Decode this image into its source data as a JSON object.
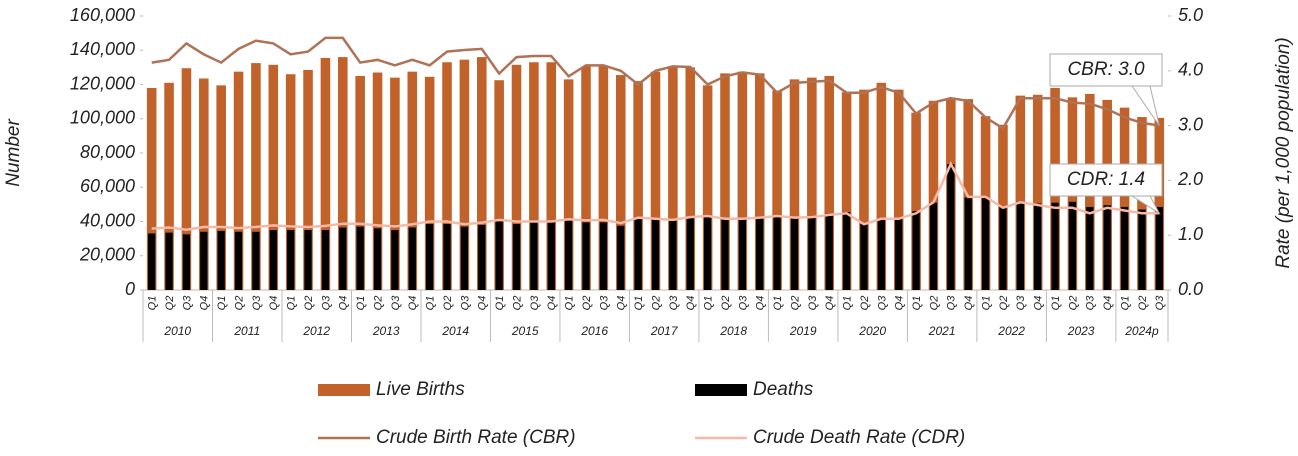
{
  "chart_data": {
    "type": "bar_line",
    "y_label": "Number",
    "y2_label": "Rate (per 1,000 population)",
    "categories": [
      "Q1",
      "Q2",
      "Q3",
      "Q4",
      "Q1",
      "Q2",
      "Q3",
      "Q4",
      "Q1",
      "Q2",
      "Q3",
      "Q4",
      "Q1",
      "Q2",
      "Q3",
      "Q4",
      "Q1",
      "Q2",
      "Q3",
      "Q4",
      "Q1",
      "Q2",
      "Q3",
      "Q4",
      "Q1",
      "Q2",
      "Q3",
      "Q4",
      "Q1",
      "Q2",
      "Q3",
      "Q4",
      "Q1",
      "Q2",
      "Q3",
      "Q4",
      "Q1",
      "Q2",
      "Q3",
      "Q4",
      "Q1",
      "Q2",
      "Q3",
      "Q4",
      "Q1",
      "Q2",
      "Q3",
      "Q4",
      "Q1",
      "Q2",
      "Q3",
      "Q4",
      "Q1",
      "Q2",
      "Q3",
      "Q4",
      "Q1",
      "Q2",
      "Q3"
    ],
    "year_groups": [
      "2010",
      "2011",
      "2012",
      "2013",
      "2014",
      "2015",
      "2016",
      "2017",
      "2018",
      "2019",
      "2020",
      "2021",
      "2022",
      "2023",
      "2024p"
    ],
    "series": [
      {
        "name": "Live Births",
        "kind": "bar",
        "color": "#c0622a",
        "values": [
          118000,
          121000,
          129500,
          123500,
          119500,
          127500,
          132500,
          131500,
          126000,
          128500,
          135500,
          136000,
          125000,
          127000,
          124000,
          127500,
          124500,
          133000,
          134500,
          136000,
          122500,
          131500,
          133000,
          133000,
          123000,
          130500,
          130500,
          125500,
          122000,
          127500,
          130000,
          130000,
          119500,
          126500,
          127500,
          126500,
          116500,
          123000,
          124000,
          125000,
          115500,
          117000,
          121000,
          117000,
          103500,
          110500,
          112000,
          111500,
          101500,
          96500,
          113500,
          114000,
          118000,
          112500,
          114500,
          111000,
          106500,
          101000,
          100500
        ]
      },
      {
        "name": "Deaths",
        "kind": "bar",
        "color": "#000000",
        "values": [
          33000,
          33500,
          32500,
          34000,
          34500,
          34000,
          34000,
          35000,
          35000,
          35000,
          35000,
          36500,
          37000,
          36000,
          35000,
          36500,
          38500,
          38500,
          37000,
          38000,
          40000,
          38500,
          39500,
          39500,
          40500,
          39500,
          39500,
          37500,
          41500,
          41500,
          40500,
          42000,
          43000,
          41500,
          41500,
          42500,
          43000,
          42500,
          42500,
          44500,
          45500,
          38500,
          41500,
          41500,
          46000,
          51000,
          73500,
          54000,
          54000,
          48500,
          51500,
          50500,
          51000,
          51500,
          48500,
          49500,
          48500,
          47000,
          48500
        ]
      },
      {
        "name": "Crude Birth Rate (CBR)",
        "kind": "line",
        "axis": "y2",
        "color": "#b07255",
        "values": [
          4.15,
          4.2,
          4.5,
          4.3,
          4.15,
          4.4,
          4.55,
          4.5,
          4.3,
          4.35,
          4.6,
          4.6,
          4.15,
          4.2,
          4.1,
          4.2,
          4.1,
          4.35,
          4.38,
          4.4,
          3.95,
          4.25,
          4.27,
          4.27,
          3.9,
          4.1,
          4.1,
          4.0,
          3.75,
          4.0,
          4.08,
          4.07,
          3.75,
          3.9,
          3.97,
          3.93,
          3.6,
          3.78,
          3.8,
          3.82,
          3.6,
          3.6,
          3.7,
          3.6,
          3.22,
          3.42,
          3.5,
          3.45,
          3.15,
          2.95,
          3.5,
          3.5,
          3.5,
          3.42,
          3.4,
          3.3,
          3.15,
          3.05,
          3.0
        ]
      },
      {
        "name": "Crude Death Rate (CDR)",
        "kind": "line",
        "axis": "y2",
        "color": "#f4b9a8",
        "values": [
          1.12,
          1.14,
          1.1,
          1.15,
          1.15,
          1.13,
          1.15,
          1.18,
          1.16,
          1.15,
          1.17,
          1.21,
          1.21,
          1.18,
          1.16,
          1.2,
          1.25,
          1.25,
          1.2,
          1.23,
          1.28,
          1.25,
          1.25,
          1.25,
          1.29,
          1.27,
          1.28,
          1.22,
          1.32,
          1.3,
          1.28,
          1.33,
          1.35,
          1.3,
          1.3,
          1.32,
          1.35,
          1.32,
          1.33,
          1.37,
          1.4,
          1.2,
          1.3,
          1.3,
          1.4,
          1.6,
          2.3,
          1.7,
          1.7,
          1.5,
          1.6,
          1.55,
          1.5,
          1.5,
          1.4,
          1.5,
          1.45,
          1.4,
          1.4
        ]
      }
    ],
    "annotations": [
      {
        "text": "CBR:  3.0"
      },
      {
        "text": "CDR: 1.4"
      }
    ],
    "ylim": [
      0,
      160000
    ],
    "yticks": [
      0,
      {
        "value": 20000,
        "label": "20,000"
      },
      {
        "value": 40000,
        "label": "40,000"
      },
      {
        "value": 60000,
        "label": "60,000"
      },
      {
        "value": 80000,
        "label": "80,000"
      },
      {
        "value": 100000,
        "label": "100,000"
      },
      {
        "value": 120000,
        "label": "120,000"
      },
      {
        "value": 140000,
        "label": "140,000"
      },
      {
        "value": 160000,
        "label": "160,000"
      }
    ],
    "y2lim": [
      0,
      5
    ],
    "y2ticks": [
      {
        "value": 0,
        "label": "0.0"
      },
      {
        "value": 1,
        "label": "1.0"
      },
      {
        "value": 2,
        "label": "2.0"
      },
      {
        "value": 3,
        "label": "3.0"
      },
      {
        "value": 4,
        "label": "4.0"
      },
      {
        "value": 5,
        "label": "5.0"
      }
    ],
    "grid": false,
    "legend": "bottom"
  }
}
